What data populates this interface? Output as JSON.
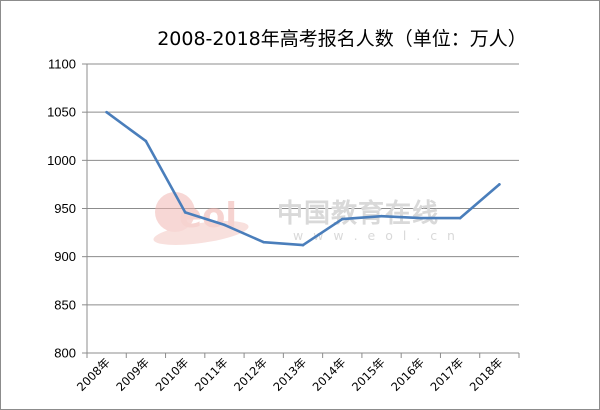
{
  "chart_data": {
    "type": "line",
    "title": "2008-2018年高考报名人数（单位：万人）",
    "xlabel": "",
    "ylabel": "",
    "categories": [
      "2008年",
      "2009年",
      "2010年",
      "2011年",
      "2012年",
      "2013年",
      "2014年",
      "2015年",
      "2016年",
      "2017年",
      "2018年"
    ],
    "series": [
      {
        "values": [
          1050,
          1020,
          946,
          933,
          915,
          912,
          939,
          942,
          940,
          940,
          975
        ]
      }
    ],
    "ylim": [
      800,
      1100
    ],
    "yticks": [
      800,
      850,
      900,
      950,
      1000,
      1050,
      1100
    ],
    "grid": true,
    "legend": "none",
    "colors": {
      "line": "#4a7ebb",
      "grid": "#8c8c8c",
      "axis": "#8c8c8c"
    }
  },
  "watermark": {
    "logo_text": "eol",
    "site_name": "中国教育在线",
    "url": "w w w . e o l . c n",
    "colors": {
      "logo": "#f5c6c2",
      "text": "#d9d9d9"
    }
  }
}
